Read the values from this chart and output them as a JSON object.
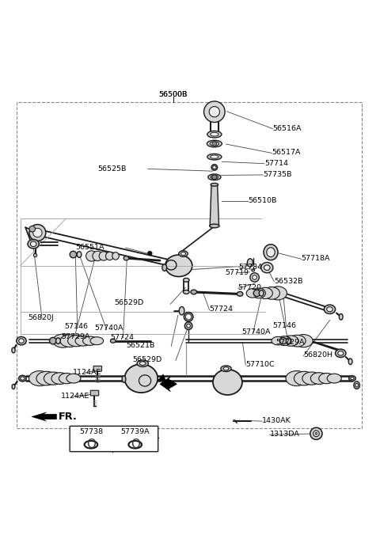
{
  "bg_color": "#ffffff",
  "diagram_color": "#1a1a1a",
  "border_color": "#555555",
  "fig_w": 4.8,
  "fig_h": 6.81,
  "dpi": 100,
  "font_size": 6.8,
  "font_size_fr": 9.5,
  "labels": {
    "56500B": [
      0.455,
      0.966,
      "center"
    ],
    "56516A": [
      0.745,
      0.873,
      "left"
    ],
    "56517A": [
      0.72,
      0.81,
      "left"
    ],
    "57714": [
      0.7,
      0.782,
      "left"
    ],
    "56525B": [
      0.33,
      0.764,
      "right"
    ],
    "57735B": [
      0.696,
      0.75,
      "left"
    ],
    "56510B": [
      0.656,
      0.68,
      "left"
    ],
    "56551A": [
      0.27,
      0.558,
      "right"
    ],
    "57718A": [
      0.798,
      0.528,
      "left"
    ],
    "57734": [
      0.632,
      0.506,
      "left"
    ],
    "57719": [
      0.595,
      0.491,
      "left"
    ],
    "56532B": [
      0.726,
      0.468,
      "left"
    ],
    "57720": [
      0.63,
      0.45,
      "left"
    ],
    "56529D_u": [
      0.418,
      0.408,
      "right"
    ],
    "57724_u": [
      0.554,
      0.392,
      "left"
    ],
    "56820J": [
      0.068,
      0.358,
      "left"
    ],
    "57146_L": [
      0.165,
      0.342,
      "left"
    ],
    "57740A_L": [
      0.245,
      0.338,
      "left"
    ],
    "57729A_L": [
      0.158,
      0.316,
      "left"
    ],
    "57724_m": [
      0.29,
      0.314,
      "left"
    ],
    "57146_R": [
      0.72,
      0.348,
      "left"
    ],
    "57740A_R": [
      0.637,
      0.33,
      "left"
    ],
    "57729A_R": [
      0.728,
      0.304,
      "left"
    ],
    "56521B": [
      0.42,
      0.296,
      "right"
    ],
    "56820H": [
      0.804,
      0.27,
      "left"
    ],
    "56529D_l": [
      0.438,
      0.256,
      "right"
    ],
    "57710C": [
      0.65,
      0.246,
      "left"
    ],
    "1124AE_t": [
      0.188,
      0.218,
      "left"
    ],
    "1124AE_b": [
      0.157,
      0.158,
      "left"
    ],
    "1430AK": [
      0.695,
      0.094,
      "left"
    ],
    "1313DA": [
      0.714,
      0.057,
      "left"
    ],
    "57738": [
      0.265,
      0.04,
      "center"
    ],
    "57739A": [
      0.338,
      0.04,
      "center"
    ]
  },
  "border": [
    0.038,
    0.078,
    0.958,
    0.945
  ]
}
